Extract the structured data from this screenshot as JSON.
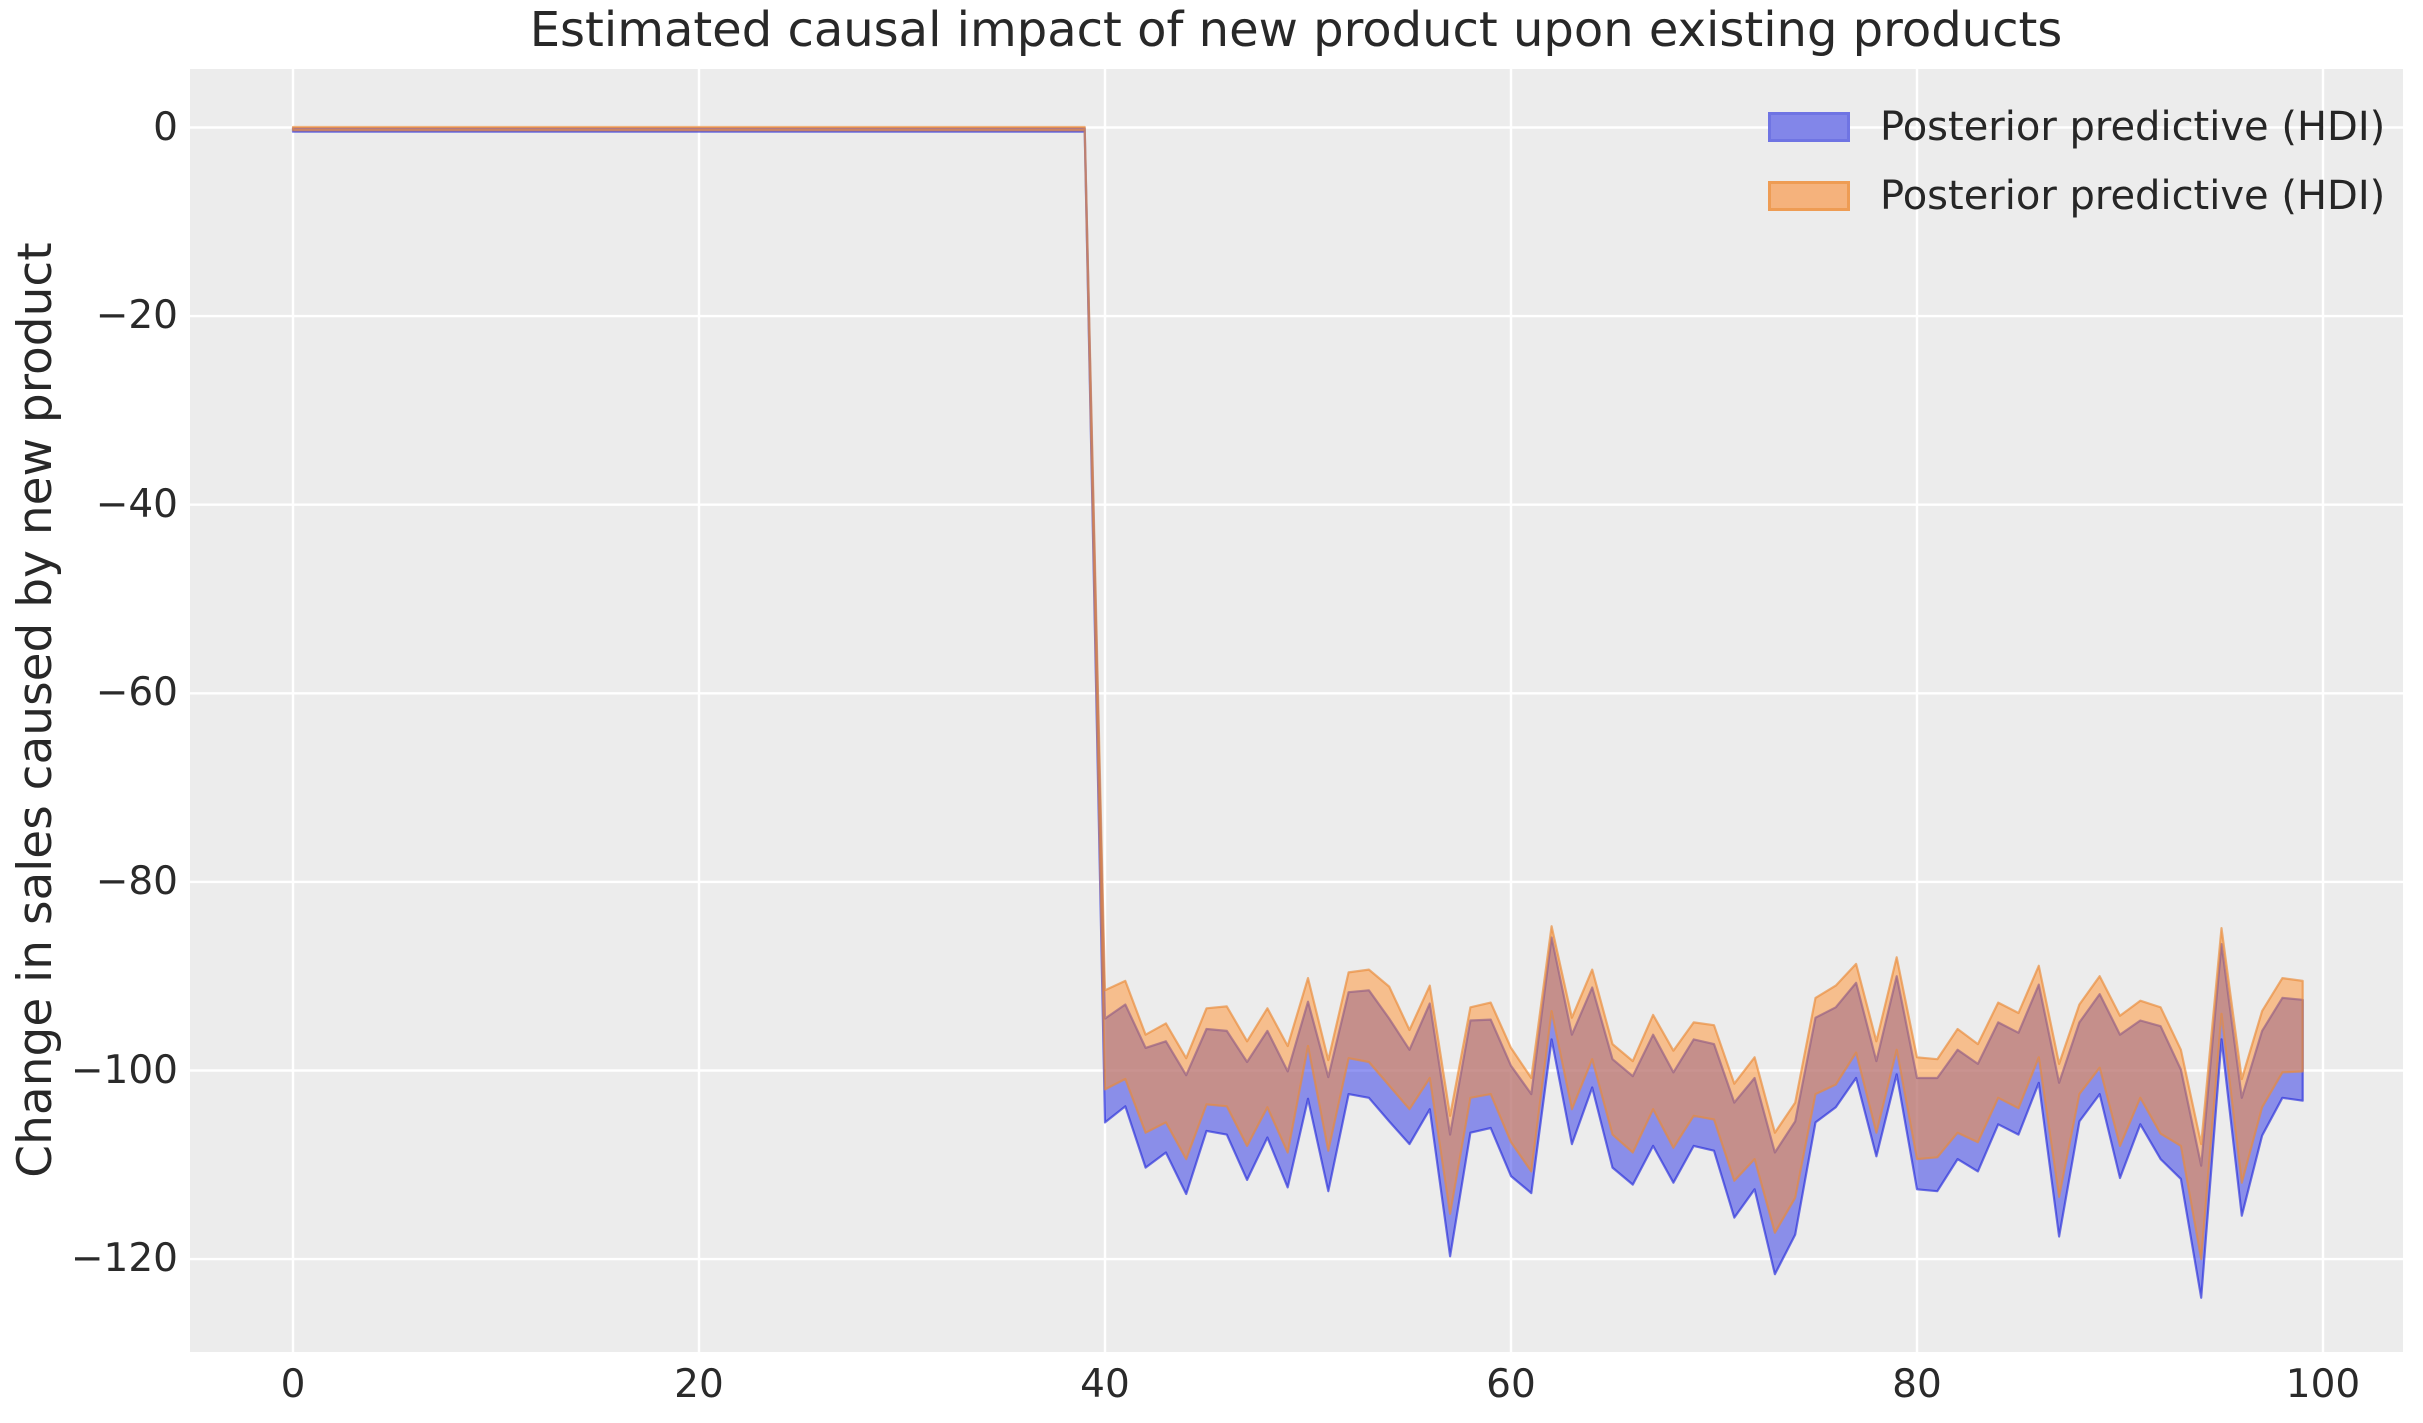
{
  "figure": {
    "title": "Estimated causal impact of new product upon existing products",
    "ylabel": "Change in sales caused by new product",
    "background": "#ffffff",
    "axes_background": "#ececec",
    "grid_color": "#ffffff",
    "text_color": "#282828"
  },
  "legend": {
    "items": [
      {
        "label": "Posterior predictive (HDI)",
        "swatch_fill": "#8286e9",
        "swatch_border": "#6f74e3"
      },
      {
        "label": "Posterior predictive (HDI)",
        "swatch_fill": "#f5b27c",
        "swatch_border": "#ee9c54"
      }
    ]
  },
  "axis": {
    "x_tick_labels": [
      "0",
      "20",
      "40",
      "60",
      "80",
      "100"
    ],
    "y_tick_labels": [
      "0",
      "−20",
      "−40",
      "−60",
      "−80",
      "−100",
      "−120"
    ]
  },
  "chart_data": {
    "type": "area",
    "title": "Estimated causal impact of new product upon existing products",
    "xlabel": "",
    "ylabel": "Change in sales caused by new product",
    "xlim": [
      -4.95,
      103.95
    ],
    "ylim": [
      -130.2,
      6.2
    ],
    "xticks": [
      0,
      20,
      40,
      60,
      80,
      100
    ],
    "yticks": [
      0,
      -20,
      -40,
      -60,
      -80,
      -100,
      -120
    ],
    "grid": true,
    "legend_position": "upper right",
    "pre_period": {
      "x_start": 0,
      "x_end": 39,
      "value": 0
    },
    "intervention_x": 39,
    "x_post": [
      39,
      40,
      41,
      42,
      43,
      44,
      45,
      46,
      47,
      48,
      49,
      50,
      51,
      52,
      53,
      54,
      55,
      56,
      57,
      58,
      59,
      60,
      61,
      62,
      63,
      64,
      65,
      66,
      67,
      68,
      69,
      70,
      71,
      72,
      73,
      74,
      75,
      76,
      77,
      78,
      79,
      80,
      81,
      82,
      83,
      84,
      85,
      86,
      87,
      88,
      89,
      90,
      91,
      92,
      93,
      94,
      95,
      96,
      97,
      98,
      99
    ],
    "series": [
      {
        "name": "Posterior predictive (HDI) - blue band",
        "dom_name": "blue-hdi-band",
        "type": "band",
        "fill": "#2830e6",
        "fill_alpha": 0.5,
        "stroke": "#262cdb",
        "stroke_alpha": 0.65,
        "pre_band": [
          -0.1,
          -0.45
        ],
        "high": [
          -0.1,
          -94.5,
          -93.0,
          -97.6,
          -96.9,
          -100.5,
          -95.6,
          -95.8,
          -99.1,
          -95.8,
          -100.1,
          -92.7,
          -100.7,
          -91.7,
          -91.5,
          -94.5,
          -97.8,
          -92.9,
          -106.8,
          -94.7,
          -94.6,
          -99.5,
          -102.5,
          -85.9,
          -96.2,
          -91.2,
          -98.8,
          -100.6,
          -96.2,
          -100.2,
          -96.7,
          -97.2,
          -103.4,
          -100.8,
          -108.7,
          -105.4,
          -94.4,
          -93.3,
          -90.7,
          -99.0,
          -90.0,
          -100.8,
          -100.8,
          -97.8,
          -99.3,
          -94.9,
          -96.0,
          -90.9,
          -101.3,
          -94.9,
          -91.9,
          -96.2,
          -94.7,
          -95.3,
          -99.9,
          -110.1,
          -86.6,
          -102.9,
          -95.8,
          -92.3,
          -92.5
        ],
        "low": [
          -0.45,
          -105.5,
          -103.8,
          -110.3,
          -108.7,
          -113.1,
          -106.4,
          -106.8,
          -111.6,
          -107.1,
          -112.4,
          -103.0,
          -112.8,
          -102.5,
          -102.9,
          -105.4,
          -107.8,
          -104.1,
          -119.7,
          -106.6,
          -106.1,
          -111.2,
          -113.0,
          -96.7,
          -107.8,
          -101.8,
          -110.3,
          -112.1,
          -108.0,
          -111.9,
          -108.0,
          -108.5,
          -115.6,
          -112.6,
          -121.6,
          -117.4,
          -105.5,
          -103.9,
          -100.8,
          -109.1,
          -100.4,
          -112.6,
          -112.8,
          -109.4,
          -110.7,
          -105.7,
          -106.8,
          -101.3,
          -117.6,
          -105.4,
          -102.5,
          -111.4,
          -105.7,
          -109.4,
          -111.5,
          -124.1,
          -96.7,
          -115.4,
          -106.9,
          -102.9,
          -103.2
        ]
      },
      {
        "name": "Posterior predictive (HDI) - orange band",
        "dom_name": "orange-hdi-band",
        "type": "band",
        "fill": "#ff902e",
        "fill_alpha": 0.5,
        "stroke": "#e98b38",
        "stroke_alpha": 0.65,
        "pre_band": [
          0.05,
          -0.3
        ],
        "high": [
          0.05,
          -91.5,
          -90.5,
          -96.2,
          -95.0,
          -98.7,
          -93.4,
          -93.2,
          -96.9,
          -93.4,
          -97.4,
          -90.2,
          -98.9,
          -89.6,
          -89.3,
          -91.1,
          -95.7,
          -91.0,
          -104.8,
          -93.3,
          -92.8,
          -97.6,
          -100.8,
          -84.7,
          -94.4,
          -89.3,
          -97.2,
          -99.0,
          -94.1,
          -97.9,
          -94.9,
          -95.2,
          -101.4,
          -98.6,
          -106.6,
          -103.4,
          -92.3,
          -91.0,
          -88.7,
          -96.9,
          -88.0,
          -98.6,
          -98.8,
          -95.6,
          -97.2,
          -92.8,
          -93.9,
          -88.9,
          -99.3,
          -93.0,
          -90.0,
          -94.2,
          -92.6,
          -93.3,
          -97.8,
          -107.8,
          -84.9,
          -100.9,
          -93.7,
          -90.2,
          -90.5
        ],
        "low": [
          -0.3,
          -102.0,
          -100.9,
          -106.6,
          -105.5,
          -109.4,
          -103.6,
          -103.8,
          -108.0,
          -103.9,
          -108.7,
          -97.4,
          -108.5,
          -98.7,
          -99.1,
          -101.6,
          -104.1,
          -100.8,
          -115.2,
          -102.9,
          -102.5,
          -107.6,
          -110.7,
          -93.7,
          -104.1,
          -98.8,
          -106.8,
          -108.7,
          -104.1,
          -108.2,
          -104.8,
          -105.2,
          -111.7,
          -109.4,
          -117.2,
          -113.5,
          -102.5,
          -101.5,
          -98.1,
          -106.6,
          -97.8,
          -109.4,
          -109.2,
          -106.6,
          -107.6,
          -102.9,
          -104.0,
          -98.6,
          -113.4,
          -102.5,
          -99.7,
          -108.0,
          -102.9,
          -106.7,
          -108.0,
          -120.0,
          -94.0,
          -111.9,
          -103.9,
          -100.2,
          -100.1
        ]
      }
    ]
  }
}
